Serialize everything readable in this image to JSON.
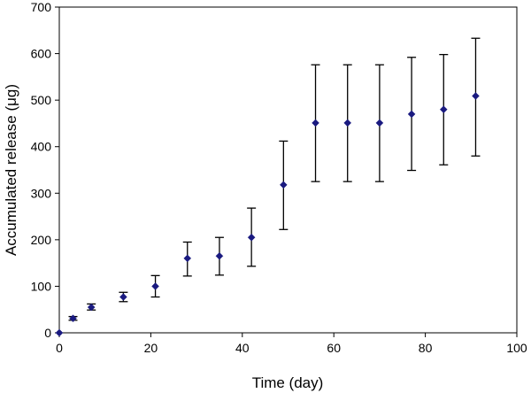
{
  "chart_data": {
    "type": "scatter",
    "xlabel": "Time (day)",
    "ylabel": "Accumulated release (μg)",
    "xlim": [
      0,
      100
    ],
    "ylim": [
      0,
      700
    ],
    "xticks": [
      0,
      20,
      40,
      60,
      80,
      100
    ],
    "yticks": [
      0,
      100,
      200,
      300,
      400,
      500,
      600,
      700
    ],
    "grid": false,
    "legend": "none",
    "marker_color": "#1a1a80",
    "points": [
      {
        "x": 0,
        "y": 0,
        "err_low": 0,
        "err_high": 0
      },
      {
        "x": 3,
        "y": 31,
        "err_low": 27,
        "err_high": 35
      },
      {
        "x": 7,
        "y": 55,
        "err_low": 49,
        "err_high": 62
      },
      {
        "x": 14,
        "y": 77,
        "err_low": 67,
        "err_high": 87
      },
      {
        "x": 21,
        "y": 100,
        "err_low": 77,
        "err_high": 123
      },
      {
        "x": 28,
        "y": 160,
        "err_low": 122,
        "err_high": 195
      },
      {
        "x": 35,
        "y": 165,
        "err_low": 124,
        "err_high": 205
      },
      {
        "x": 42,
        "y": 205,
        "err_low": 143,
        "err_high": 268
      },
      {
        "x": 49,
        "y": 318,
        "err_low": 222,
        "err_high": 412
      },
      {
        "x": 56,
        "y": 451,
        "err_low": 325,
        "err_high": 576
      },
      {
        "x": 63,
        "y": 451,
        "err_low": 325,
        "err_high": 576
      },
      {
        "x": 70,
        "y": 451,
        "err_low": 325,
        "err_high": 576
      },
      {
        "x": 77,
        "y": 470,
        "err_low": 349,
        "err_high": 592
      },
      {
        "x": 84,
        "y": 480,
        "err_low": 361,
        "err_high": 598
      },
      {
        "x": 91,
        "y": 509,
        "err_low": 380,
        "err_high": 633
      }
    ]
  }
}
